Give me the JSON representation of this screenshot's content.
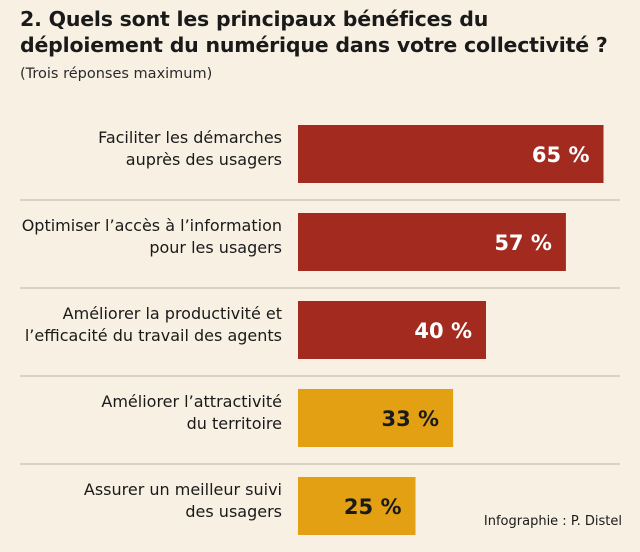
{
  "header": {
    "title": "2. Quels sont les principaux bénéfices du déploiement du numérique dans votre collectivité ?",
    "subtitle": "(Trois réponses maximum)"
  },
  "credit": "Infographie : P. Distel",
  "colors": {
    "background": "#f7f0e3",
    "high": "#a32a1f",
    "low": "#e2a012",
    "divider": "#b9b2a6"
  },
  "chart_data": {
    "type": "bar",
    "orientation": "horizontal",
    "categories": [
      [
        "Faciliter les démarches",
        "auprès des usagers"
      ],
      [
        "Optimiser l’accès à l’information",
        "pour les usagers"
      ],
      [
        "Améliorer la productivité et",
        "l’efficacité du travail des agents"
      ],
      [
        "Améliorer l’attractivité",
        "du territoire"
      ],
      [
        "Assurer un meilleur suivi",
        "des usagers"
      ]
    ],
    "values": [
      65,
      57,
      40,
      33,
      25
    ],
    "value_labels": [
      "65 %",
      "57 %",
      "40 %",
      "33 %",
      "25 %"
    ],
    "bar_colors": [
      "#a32a1f",
      "#a32a1f",
      "#a32a1f",
      "#e2a012",
      "#e2a012"
    ],
    "label_colors": [
      "#ffffff",
      "#ffffff",
      "#ffffff",
      "#1a1a1a",
      "#1a1a1a"
    ],
    "unit": "%"
  }
}
